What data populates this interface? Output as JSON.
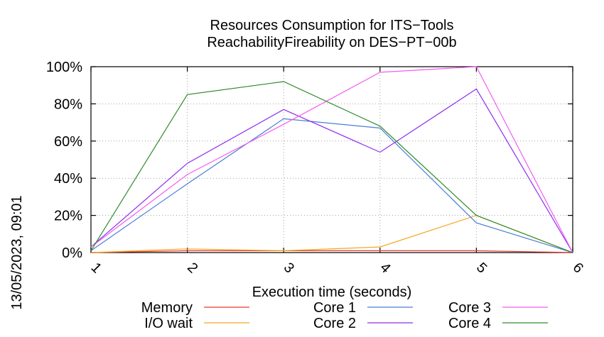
{
  "side_label": "13/05/2023, 09:01",
  "chart_data": {
    "type": "line",
    "title": "Resources Consumption for ITS−Tools",
    "subtitle": "ReachabilityFireability on DES−PT−00b",
    "xlabel": "Execution time (seconds)",
    "ylabel": "",
    "xlim": [
      1,
      6
    ],
    "ylim": [
      0,
      100
    ],
    "x_ticks": [
      "1",
      "2",
      "3",
      "4",
      "5",
      "6"
    ],
    "y_ticks": [
      "0%",
      "20%",
      "40%",
      "60%",
      "80%",
      "100%"
    ],
    "grid": true,
    "legend_position": "bottom",
    "x": [
      1,
      2,
      3,
      4,
      5,
      6
    ],
    "series": [
      {
        "name": "Memory",
        "color": "#e8392e",
        "values": [
          0,
          1,
          1,
          1,
          1,
          0
        ]
      },
      {
        "name": "I/O wait",
        "color": "#f5a820",
        "values": [
          0,
          2,
          1,
          3,
          20,
          0
        ]
      },
      {
        "name": "Core 1",
        "color": "#4a7ed6",
        "values": [
          1,
          37,
          72,
          67,
          16,
          0
        ]
      },
      {
        "name": "Core 2",
        "color": "#8e2cf0",
        "values": [
          3,
          48,
          77,
          54,
          88,
          0
        ]
      },
      {
        "name": "Core 3",
        "color": "#f45cf0",
        "values": [
          3,
          42,
          69,
          97,
          100,
          0
        ]
      },
      {
        "name": "Core 4",
        "color": "#2e8b2e",
        "values": [
          1,
          85,
          92,
          68,
          20,
          0
        ]
      }
    ]
  }
}
